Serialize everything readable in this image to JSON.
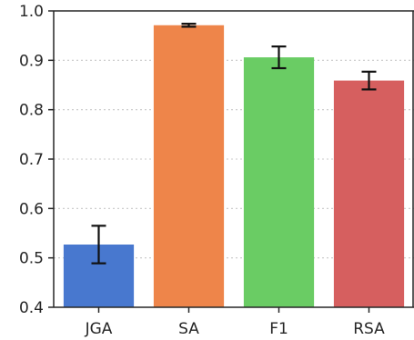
{
  "chart_data": {
    "type": "bar",
    "categories": [
      "JGA",
      "SA",
      "F1",
      "RSA"
    ],
    "values": [
      0.527,
      0.971,
      0.906,
      0.859
    ],
    "errors": [
      0.038,
      0.003,
      0.022,
      0.018
    ],
    "colors": [
      "#4878cf",
      "#ee854a",
      "#6acc64",
      "#d65f5f"
    ],
    "title": "",
    "xlabel": "",
    "ylabel": "",
    "ylim": [
      0.4,
      1.0
    ],
    "yticks": [
      "0.4",
      "0.5",
      "0.6",
      "0.7",
      "0.8",
      "0.9",
      "1.0"
    ],
    "grid": "horizontal dotted",
    "legend": "none"
  }
}
